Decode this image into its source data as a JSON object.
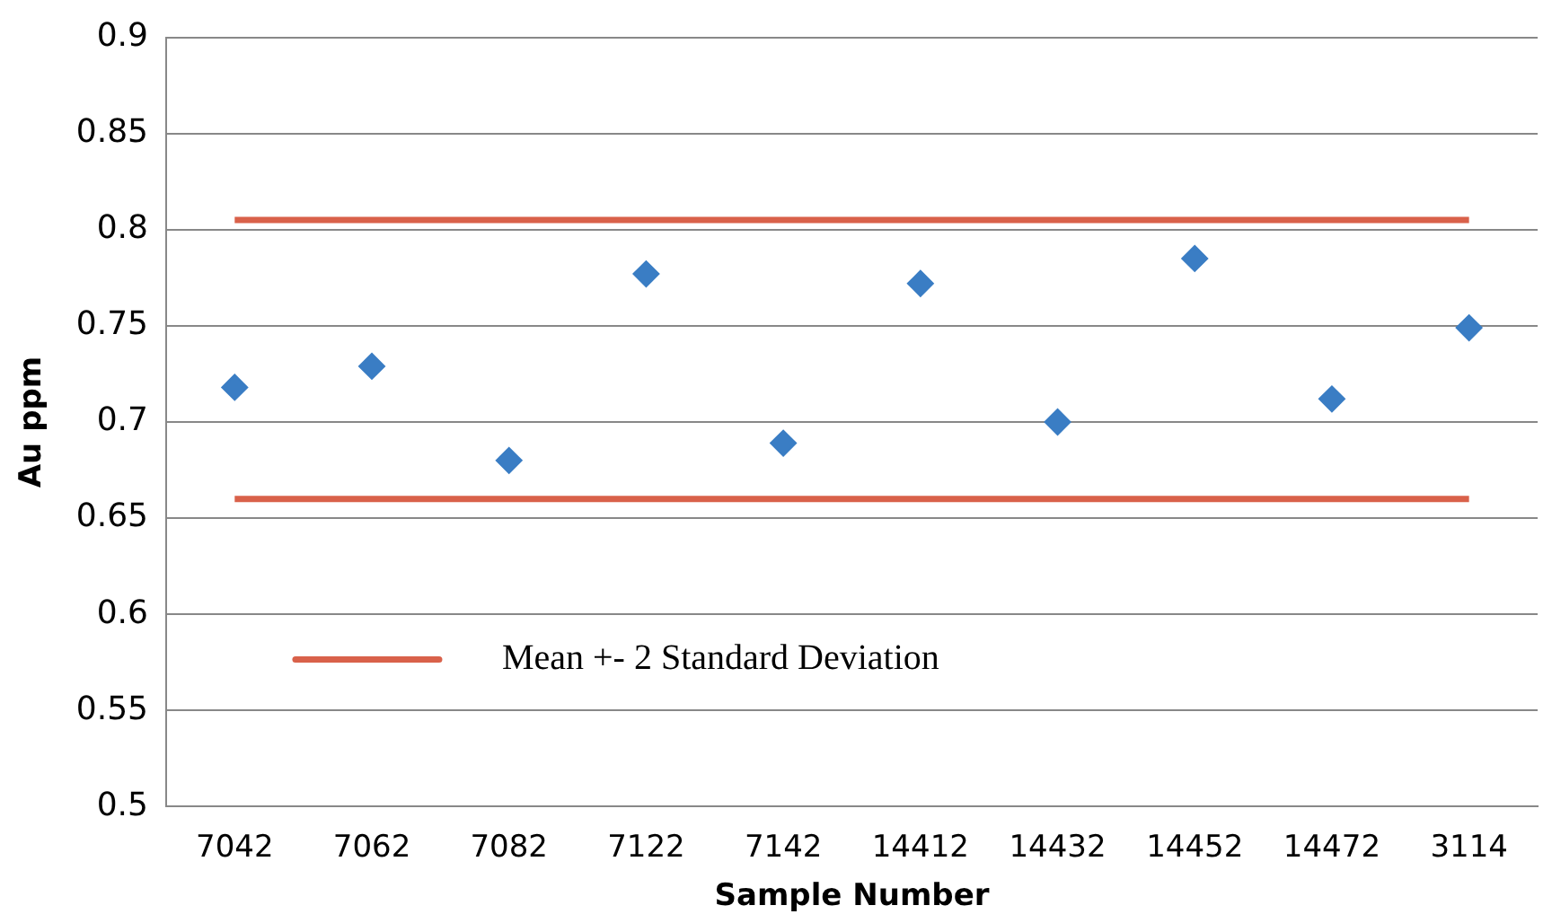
{
  "chart_data": {
    "type": "scatter",
    "xlabel": "Sample Number",
    "ylabel": "Au ppm",
    "categories": [
      "7042",
      "7062",
      "7082",
      "7122",
      "7142",
      "14412",
      "14432",
      "14452",
      "14472",
      "3114"
    ],
    "series": [
      {
        "color": "#3a7dc4",
        "marker": "diamond",
        "values": [
          0.718,
          0.729,
          0.68,
          0.777,
          0.689,
          0.772,
          0.7,
          0.785,
          0.712,
          0.749
        ]
      },
      {
        "type": "line",
        "name": "Mean +- 2 Standard Deviation",
        "color": "#d9614a",
        "marker": "none",
        "values": [
          0.805,
          0.805,
          0.805,
          0.805,
          0.805,
          0.805,
          0.805,
          0.805,
          0.805,
          0.805
        ]
      },
      {
        "type": "line",
        "color": "#d9614a",
        "marker": "none",
        "values": [
          0.66,
          0.66,
          0.66,
          0.66,
          0.66,
          0.66,
          0.66,
          0.66,
          0.66,
          0.66
        ]
      }
    ],
    "ylim": [
      0.5,
      0.9
    ],
    "yticks": [
      0.5,
      0.55,
      0.6,
      0.65,
      0.7,
      0.75,
      0.8,
      0.85,
      0.9
    ],
    "grid": "y",
    "legend": "bottom left"
  }
}
